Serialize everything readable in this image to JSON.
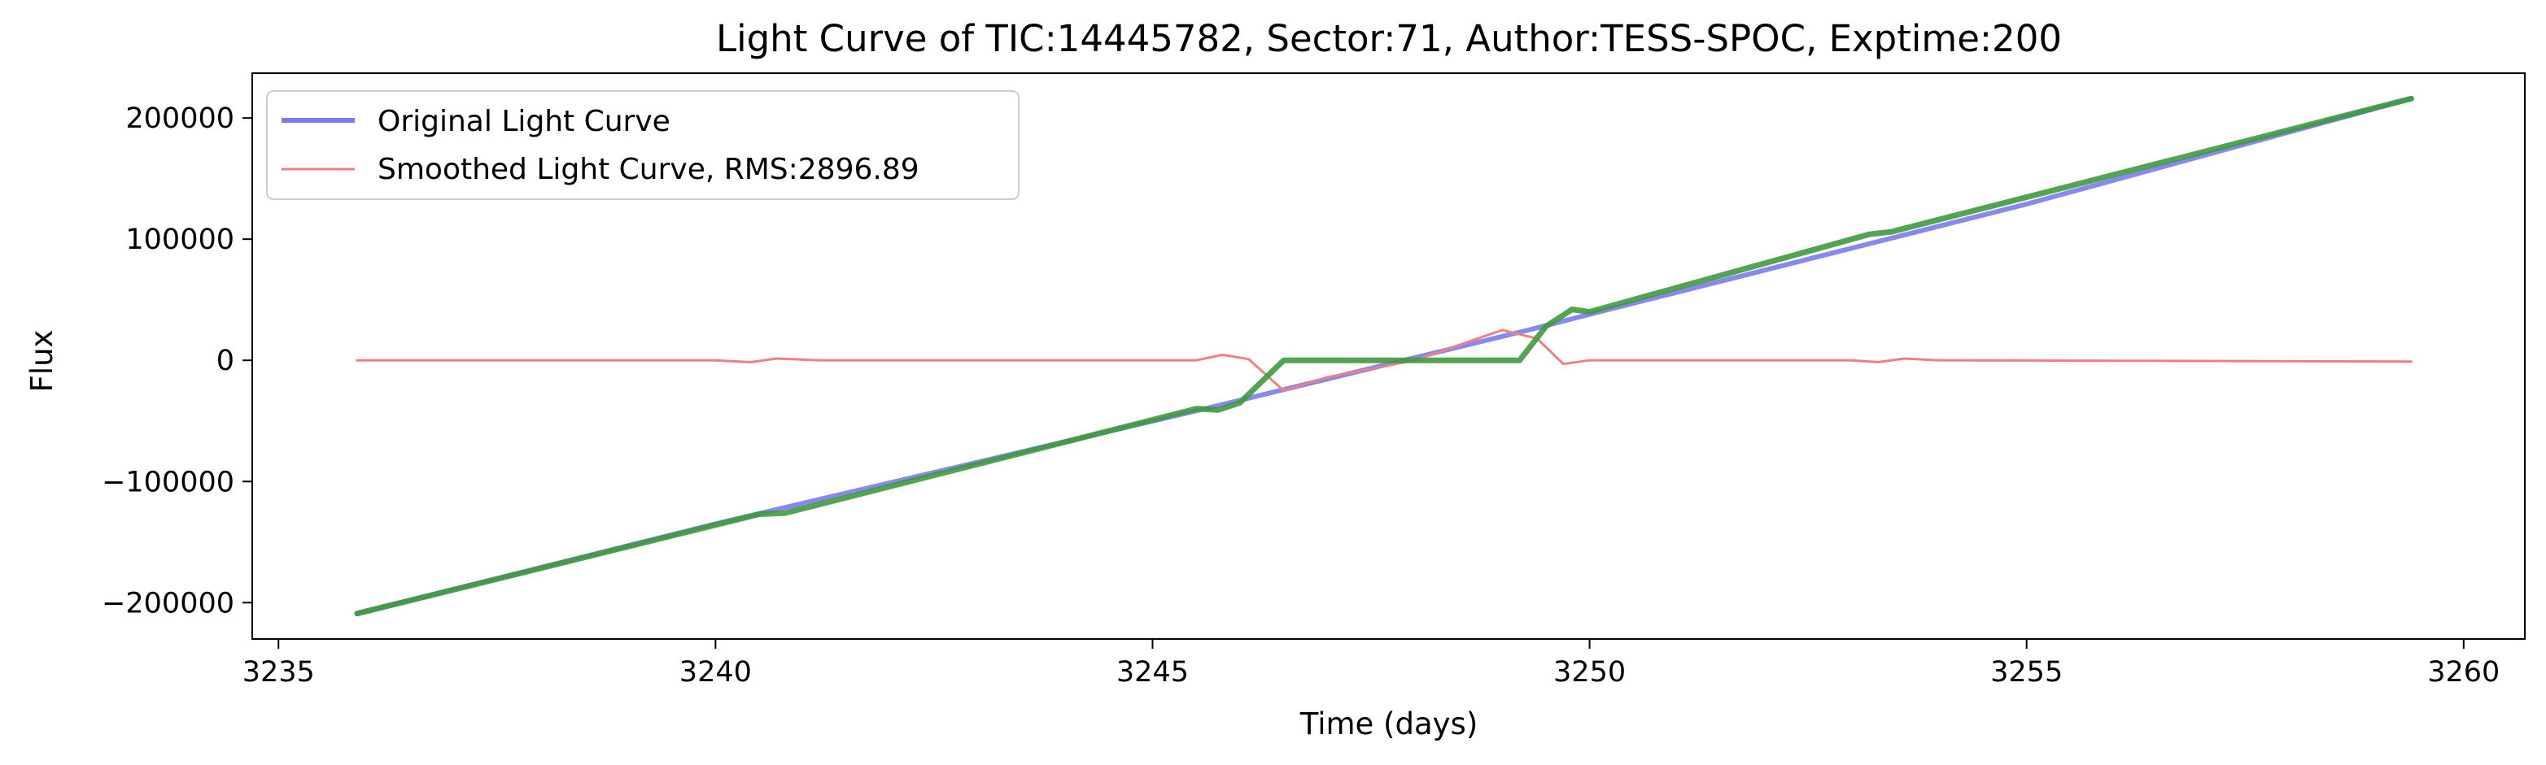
{
  "chart_data": {
    "type": "line",
    "title": "Light Curve of TIC:14445782, Sector:71, Author:TESS-SPOC, Exptime:200",
    "xlabel": "Time (days)",
    "ylabel": "Flux",
    "xlim": [
      3234.7,
      3260.7
    ],
    "ylim": [
      -230000,
      237000
    ],
    "xticks": [
      3235,
      3240,
      3245,
      3250,
      3255,
      3260
    ],
    "xtick_labels": [
      "3235",
      "3240",
      "3245",
      "3250",
      "3255",
      "3260"
    ],
    "yticks": [
      -200000,
      -100000,
      0,
      100000,
      200000
    ],
    "ytick_labels": [
      "−200000",
      "−100000",
      "0",
      "100000",
      "200000"
    ],
    "grid": false,
    "legend_position": "top-left",
    "legend": [
      "Original Light Curve",
      "Smoothed Light Curve, RMS:2896.89"
    ],
    "series": [
      {
        "name": "Original Light Curve",
        "color": "#7b7bf0",
        "x": [
          3235.9,
          3240.0,
          3245.6,
          3249.3,
          3250.0,
          3255.0,
          3259.4
        ],
        "y": [
          -209000,
          -135000,
          -40000,
          25000,
          38000,
          129000,
          216000
        ]
      },
      {
        "name": "Smoothed Light Curve, RMS:2896.89",
        "color": "#f08080",
        "x": [
          3235.9,
          3240.0,
          3240.4,
          3240.7,
          3241.2,
          3245.5,
          3245.8,
          3246.1,
          3246.5,
          3247.0,
          3248.0,
          3249.0,
          3249.4,
          3249.7,
          3250.0,
          3253.0,
          3253.3,
          3253.6,
          3254.0,
          3259.4
        ],
        "y": [
          0,
          0,
          -1500,
          1500,
          0,
          0,
          4500,
          1000,
          -25000,
          -14000,
          0,
          25000,
          18000,
          -3000,
          0,
          0,
          -1500,
          1500,
          0,
          -1000
        ]
      },
      {
        "name": "",
        "color": "#3f9a3f",
        "x": [
          3235.9,
          3240.5,
          3240.8,
          3245.5,
          3245.75,
          3246.0,
          3246.5,
          3249.2,
          3249.5,
          3249.8,
          3250.0,
          3253.2,
          3253.45,
          3259.4
        ],
        "y": [
          -209000,
          -127000,
          -126000,
          -40000,
          -41000,
          -35000,
          0,
          0,
          28000,
          42000,
          40000,
          104000,
          106000,
          216000
        ]
      }
    ]
  }
}
